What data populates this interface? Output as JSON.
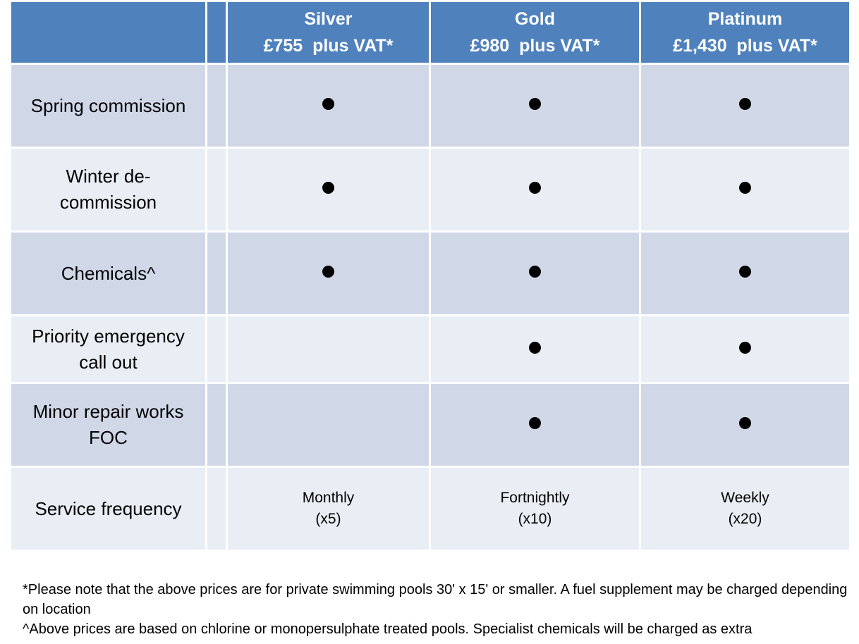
{
  "plans": [
    {
      "name": "Silver",
      "price": "£755  plus VAT*"
    },
    {
      "name": "Gold",
      "price": "£980  plus VAT*"
    },
    {
      "name": "Platinum",
      "price": "£1,430  plus VAT*"
    }
  ],
  "features": [
    {
      "label": "Spring commission",
      "included": [
        true,
        true,
        true
      ]
    },
    {
      "label": "Winter de-commission",
      "included": [
        true,
        true,
        true
      ]
    },
    {
      "label": "Chemicals^",
      "included": [
        true,
        true,
        true
      ]
    },
    {
      "label": "Priority emergency call out",
      "included": [
        false,
        true,
        true
      ]
    },
    {
      "label": "Minor repair works FOC",
      "included": [
        false,
        true,
        true
      ]
    }
  ],
  "frequency": {
    "label": "Service frequency",
    "values": [
      {
        "line1": "Monthly",
        "line2": "(x5)"
      },
      {
        "line1": "Fortnightly",
        "line2": "(x10)"
      },
      {
        "line1": "Weekly",
        "line2": "(x20)"
      }
    ]
  },
  "footnotes": [
    "*Please note that the above prices are for private swimming pools 30' x 15' or smaller. A fuel supplement may be charged depending on location",
    "^Above prices are based on chlorine or monopersulphate treated pools. Specialist chemicals will be charged as extra"
  ],
  "colors": {
    "header": "#4f81bd",
    "row_dark": "#d0d8e8",
    "row_light": "#e9edf4"
  },
  "icons": {
    "included": "filled-circle-icon"
  }
}
